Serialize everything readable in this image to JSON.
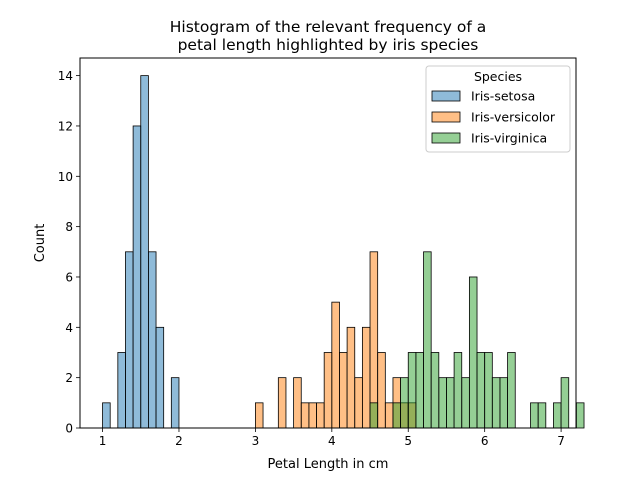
{
  "chart_data": {
    "type": "bar",
    "title_lines": [
      "Histogram of the relevant frequency of a",
      "petal length highlighted by iris species"
    ],
    "xlabel": "Petal Length in cm",
    "ylabel": "Count",
    "xlim": [
      0.705,
      7.195
    ],
    "ylim": [
      0,
      14.7
    ],
    "x_ticks": [
      1,
      2,
      3,
      4,
      5,
      6,
      7
    ],
    "y_ticks": [
      0,
      2,
      4,
      6,
      8,
      10,
      12,
      14
    ],
    "bin_start": 1.0,
    "bin_width": 0.1,
    "grid": false,
    "legend": {
      "title": "Species",
      "position": "top-right"
    },
    "series": [
      {
        "name": "Iris-setosa",
        "color": "#1f77b4",
        "values": [
          1,
          0,
          3,
          7,
          12,
          14,
          7,
          4,
          0,
          2
        ]
      },
      {
        "name": "Iris-versicolor",
        "color": "#ff7f0e",
        "values": [
          0,
          0,
          0,
          0,
          0,
          0,
          0,
          0,
          0,
          0,
          0,
          0,
          0,
          0,
          0,
          0,
          0,
          0,
          0,
          0,
          1,
          0,
          0,
          2,
          0,
          2,
          1,
          1,
          1,
          3,
          5,
          3,
          4,
          2,
          4,
          7,
          3,
          1,
          2,
          1,
          1
        ]
      },
      {
        "name": "Iris-virginica",
        "color": "#2ca02c",
        "values": [
          0,
          0,
          0,
          0,
          0,
          0,
          0,
          0,
          0,
          0,
          0,
          0,
          0,
          0,
          0,
          0,
          0,
          0,
          0,
          0,
          0,
          0,
          0,
          0,
          0,
          0,
          0,
          0,
          0,
          0,
          0,
          0,
          0,
          0,
          0,
          1,
          0,
          0,
          1,
          2,
          3,
          3,
          7,
          3,
          2,
          2,
          3,
          2,
          6,
          3,
          3,
          2,
          2,
          3,
          0,
          0,
          1,
          1,
          0,
          1,
          2,
          0,
          1,
          0,
          0,
          0,
          0,
          0,
          0,
          0
        ]
      }
    ]
  }
}
